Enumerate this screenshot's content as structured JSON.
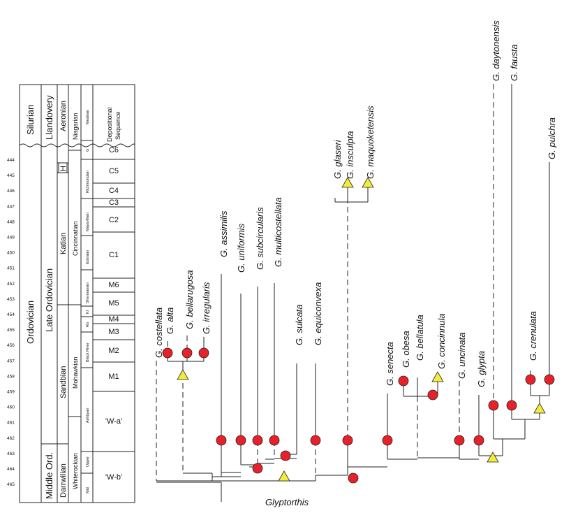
{
  "root_label": "Glyptorthis",
  "time_ticks": [
    "444",
    "445",
    "446",
    "447",
    "448",
    "449",
    "450",
    "451",
    "452",
    "453",
    "454",
    "455",
    "456",
    "457",
    "458",
    "459",
    "460",
    "461",
    "462",
    "463",
    "464",
    "465"
  ],
  "columns": {
    "period": [
      "Silurian",
      "Ordovician"
    ],
    "epoch": [
      "Llandovery",
      "Late Ordovician",
      "Middle Ord."
    ],
    "age": [
      "Aeronian",
      "H",
      "Katian",
      "Sandbian",
      "Darrwilian"
    ],
    "series": [
      "Niagarian",
      "Cincinnatian",
      "Mohawkian",
      "Whiterockian"
    ],
    "stage": [
      "Medinan",
      "G",
      "Richmondian",
      "Maysvillian",
      "Edenian",
      "Shermanian",
      "Kl",
      "Ro",
      "Black River",
      "Ashbyan",
      "Upper",
      "Mid"
    ],
    "sequence_header": [
      "Depositional",
      "Sequence"
    ],
    "sequences": [
      "C6",
      "C5",
      "C4",
      "C3",
      "C2",
      "C1",
      "M6",
      "M5",
      "M4",
      "M3",
      "M2",
      "M1",
      "'W-a'",
      "'W-b'"
    ]
  },
  "taxa": [
    "G. costellata",
    "G. alta",
    "G. bellarugosa",
    "G. irregularis",
    "G. assimilis",
    "G. uniformis",
    "G. subcircularis",
    "G. multicostellata",
    "G. sulcata",
    "G. equiconvexa",
    "G. glaseri",
    "G. insculpta",
    "G. maquoketensis",
    "G. senecta",
    "G. obesa",
    "G. bellatula",
    "G. concinnula",
    "G. uncinata",
    "G. glypta",
    "G. daytonensis",
    "G. fausta",
    "G. crenulata",
    "G. pulchra"
  ],
  "legend_colors": {
    "circle": "#e8202a",
    "triangle": "#f4ec3a",
    "line": "#222222"
  }
}
